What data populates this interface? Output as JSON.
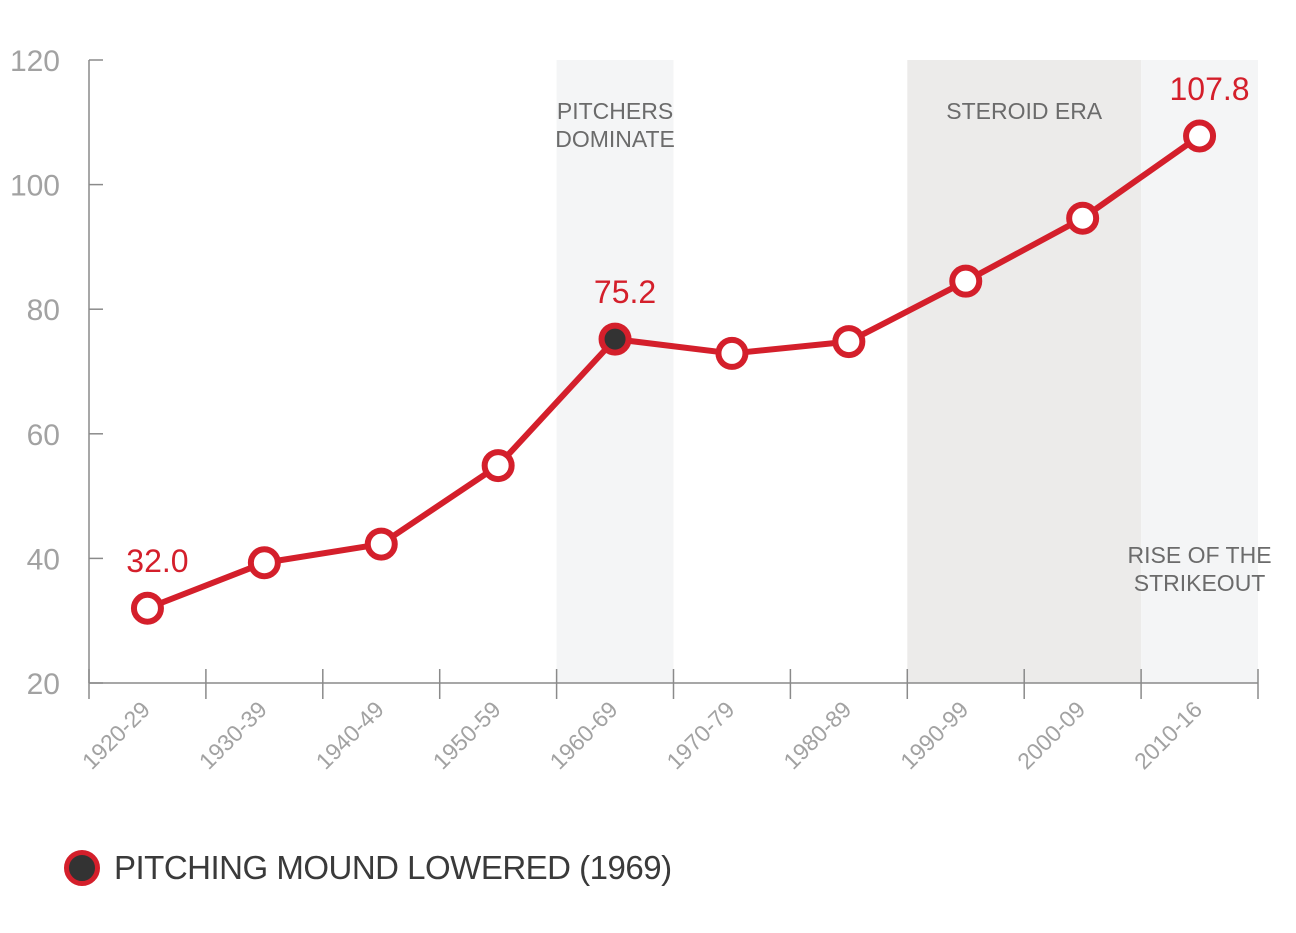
{
  "chart_data": {
    "type": "line",
    "categories": [
      "1920-29",
      "1930-39",
      "1940-49",
      "1950-59",
      "1960-69",
      "1970-79",
      "1980-89",
      "1990-99",
      "2000-09",
      "2010-16"
    ],
    "series": [
      {
        "values": [
          32.0,
          39.3,
          42.3,
          54.9,
          75.2,
          72.9,
          74.8,
          84.5,
          94.6,
          107.8
        ]
      }
    ],
    "highlighted_index": 4,
    "data_labels": [
      {
        "index": 0,
        "text": "32.0"
      },
      {
        "index": 4,
        "text": "75.2"
      },
      {
        "index": 9,
        "text": "107.8"
      }
    ],
    "ylim": [
      20,
      120
    ],
    "yticks": [
      20,
      40,
      60,
      80,
      100,
      120
    ],
    "bands": [
      {
        "from": 4,
        "to": 5,
        "label_lines": [
          "PITCHERS",
          "DOMINATE"
        ],
        "label_pos": "top",
        "color": "#f4f5f6"
      },
      {
        "from": 7,
        "to": 9,
        "label_lines": [
          "STEROID ERA"
        ],
        "label_pos": "top",
        "color": "#ecebea"
      },
      {
        "from": 9,
        "to": 10,
        "label_lines": [
          "RISE OF THE",
          "STRIKEOUT"
        ],
        "label_pos": "bottom",
        "color": "#f4f5f6"
      }
    ],
    "line_color": "#d41f2b",
    "highlight_fill": "#333333",
    "grid": false
  },
  "legend": {
    "label": "PITCHING MOUND LOWERED (1969)"
  }
}
